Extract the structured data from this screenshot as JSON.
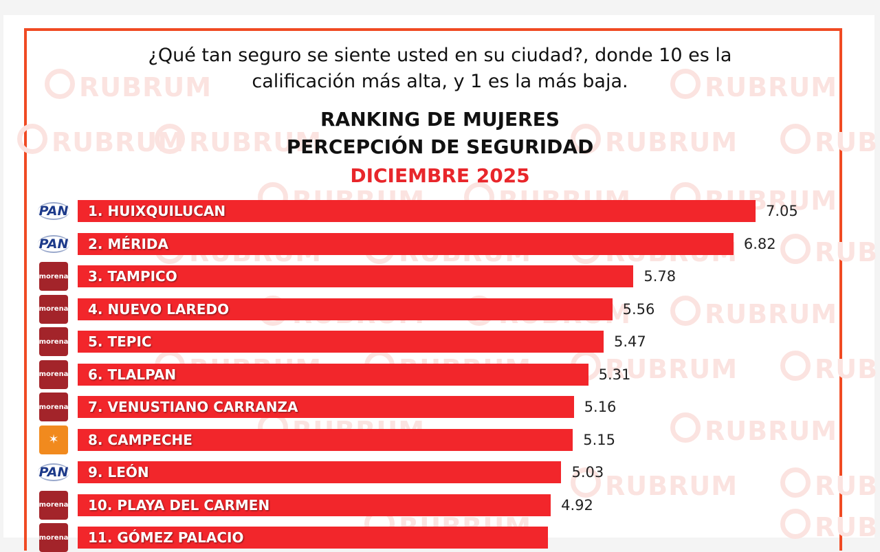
{
  "watermark": "RUBRUM",
  "question": "¿Qué tan seguro se siente usted en su ciudad?, donde 10 es la calificación más alta, y  1 es la más baja.",
  "colors": {
    "bar": "#f2262b",
    "frame": "#f04a23",
    "date": "#e8262b",
    "pan": "#1d3a8a",
    "morena": "#a3242a",
    "mc": "#f18a1e"
  },
  "chart_data": {
    "type": "bar",
    "orientation": "horizontal",
    "title": "RANKING DE MUJERES",
    "subtitle": "PERCEPCIÓN DE SEGURIDAD",
    "date": "DICIEMBRE 2025",
    "categories": [
      "1. HUIXQUILUCAN",
      "2. MÉRIDA",
      "3. TAMPICO",
      "4. NUEVO LAREDO",
      "5. TEPIC",
      "6. TLALPAN",
      "7. VENUSTIANO CARRANZA",
      "8. CAMPECHE",
      "9. LEÓN",
      "10. PLAYA DEL CARMEN",
      "11. GÓMEZ PALACIO"
    ],
    "values": [
      7.05,
      6.82,
      5.78,
      5.56,
      5.47,
      5.31,
      5.16,
      5.15,
      5.03,
      4.92,
      4.89
    ],
    "value_labels": [
      "7.05",
      "6.82",
      "5.78",
      "5.56",
      "5.47",
      "5.31",
      "5.16",
      "5.15",
      "5.03",
      "4.92",
      ""
    ],
    "parties": [
      "PAN",
      "PAN",
      "morena",
      "morena",
      "morena",
      "morena",
      "morena",
      "movimiento-ciudadano",
      "PAN",
      "morena",
      "morena"
    ],
    "party_labels": {
      "PAN": "PAN",
      "morena": "morena",
      "movimiento-ciudadano": "✶"
    },
    "xlim": [
      0,
      10
    ],
    "grid": false
  }
}
